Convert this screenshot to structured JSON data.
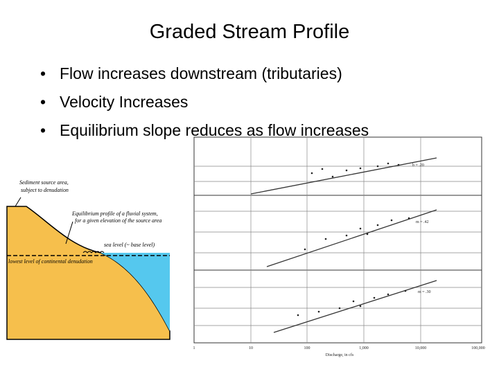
{
  "header": {
    "title": "Graded Stream Profile"
  },
  "bullets": [
    "Flow increases downstream (tributaries)",
    "Velocity Increases",
    "Equilibrium slope reduces as flow increases"
  ],
  "left_figure": {
    "source_label": [
      "Sediment source area,",
      "subject to denudation"
    ],
    "profile_label": [
      "Equilibrium profile of a fluvial system,",
      "for a given elevation of the source area"
    ],
    "sea_label": "sea level (~ base level)",
    "lowest_label": "lowest level of continental denudation"
  },
  "right_figure": {
    "x_label": "Discharge, in cfs",
    "x_ticks": [
      "1",
      "10",
      "100",
      "1,000",
      "10,000",
      "100,000"
    ],
    "panel_labels": [
      "b = .20",
      "m = .42",
      "m = .30"
    ]
  }
}
